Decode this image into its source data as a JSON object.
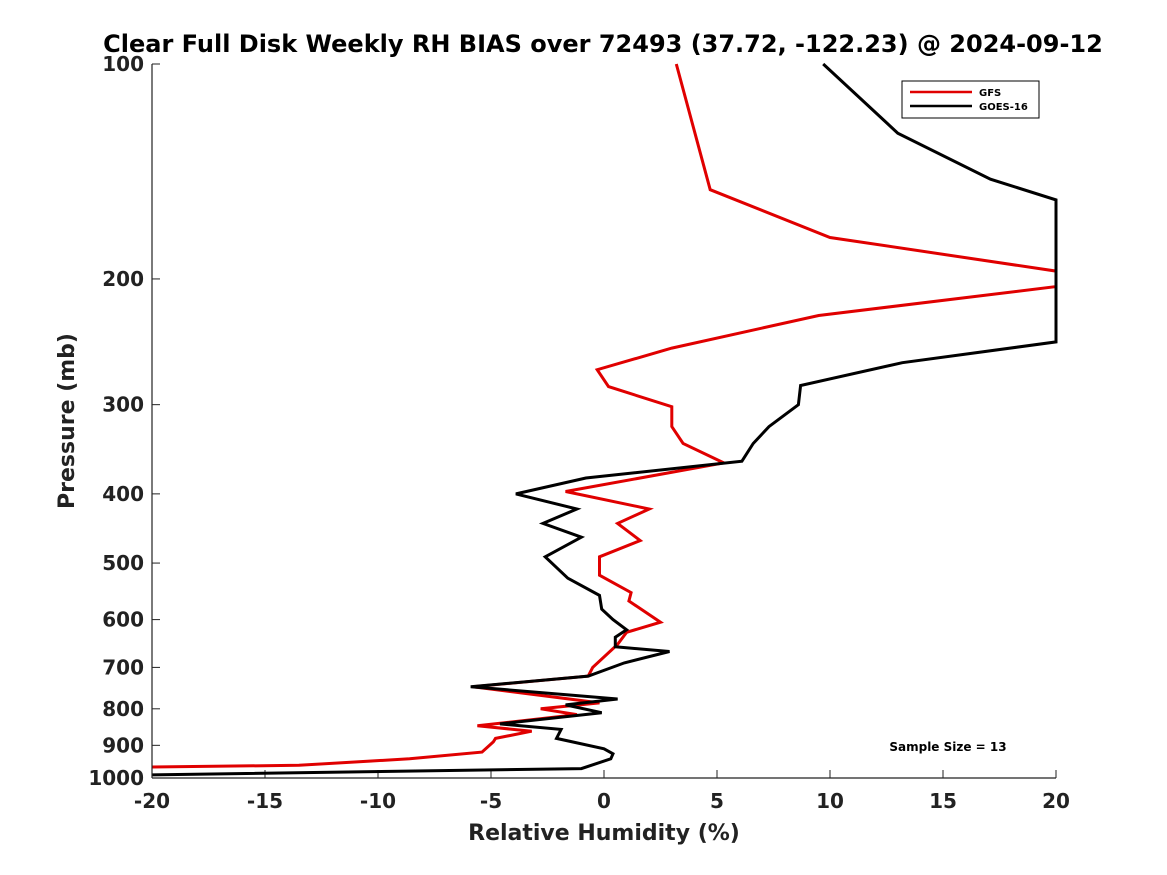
{
  "chart_data": {
    "type": "line",
    "title": "Clear Full Disk Weekly RH BIAS over 72493 (37.72, -122.23) @ 2024-09-12",
    "xlabel": "Relative Humidity (%)",
    "ylabel": "Pressure (mb)",
    "xlim": [
      -20,
      20
    ],
    "ylim": [
      100,
      1000
    ],
    "yscale": "log",
    "yreversed": true,
    "xticks": [
      -20,
      -15,
      -10,
      -5,
      0,
      5,
      10,
      15,
      20
    ],
    "xtick_labels": [
      "-20",
      "-15",
      "-10",
      "-5",
      "0",
      "5",
      "10",
      "15",
      "20"
    ],
    "yticks": [
      100,
      200,
      300,
      400,
      500,
      600,
      700,
      800,
      900,
      1000
    ],
    "ytick_labels": [
      "100",
      "200",
      "300",
      "400",
      "500",
      "600",
      "700",
      "800",
      "900",
      "1000"
    ],
    "grid": false,
    "legend_position": "top-right",
    "annotation": "Sample Size = 13",
    "series": [
      {
        "name": "GFS",
        "color": "#e00000",
        "points": [
          [
            3.2,
            100
          ],
          [
            4.7,
            150
          ],
          [
            10,
            175
          ],
          [
            20,
            195
          ],
          [
            20,
            205
          ],
          [
            9.5,
            225
          ],
          [
            3,
            250
          ],
          [
            -0.3,
            268
          ],
          [
            0.2,
            283
          ],
          [
            3,
            302
          ],
          [
            3,
            322
          ],
          [
            3.5,
            340
          ],
          [
            5.3,
            362
          ],
          [
            -1.7,
            397
          ],
          [
            2,
            420
          ],
          [
            0.6,
            440
          ],
          [
            1.6,
            465
          ],
          [
            -0.2,
            490
          ],
          [
            -0.2,
            520
          ],
          [
            1.2,
            550
          ],
          [
            1.1,
            565
          ],
          [
            2.5,
            605
          ],
          [
            1.0,
            625
          ],
          [
            0.6,
            650
          ],
          [
            -0.5,
            700
          ],
          [
            -0.7,
            720
          ],
          [
            -5.8,
            745
          ],
          [
            -0.2,
            785
          ],
          [
            -2.8,
            800
          ],
          [
            -1.2,
            815
          ],
          [
            -5.6,
            845
          ],
          [
            -3.2,
            860
          ],
          [
            -4.8,
            880
          ],
          [
            -4.9,
            890
          ],
          [
            -5.4,
            920
          ],
          [
            -8.6,
            940
          ],
          [
            -13.5,
            960
          ],
          [
            -20,
            965
          ]
        ]
      },
      {
        "name": "GOES-16",
        "color": "#000000",
        "points": [
          [
            9.7,
            100
          ],
          [
            13,
            125
          ],
          [
            17.1,
            145
          ],
          [
            20,
            155
          ],
          [
            20,
            245
          ],
          [
            13.2,
            262
          ],
          [
            8.7,
            282
          ],
          [
            8.6,
            300
          ],
          [
            7.3,
            322
          ],
          [
            6.6,
            340
          ],
          [
            6.1,
            360
          ],
          [
            -0.8,
            380
          ],
          [
            -3.9,
            400
          ],
          [
            -1.2,
            420
          ],
          [
            -2.7,
            440
          ],
          [
            -1.0,
            460
          ],
          [
            -2.6,
            490
          ],
          [
            -1.6,
            525
          ],
          [
            -0.2,
            555
          ],
          [
            -0.1,
            580
          ],
          [
            0.4,
            600
          ],
          [
            1.0,
            620
          ],
          [
            0.5,
            635
          ],
          [
            0.5,
            655
          ],
          [
            2.9,
            665
          ],
          [
            0.9,
            690
          ],
          [
            -0.7,
            720
          ],
          [
            -5.9,
            745
          ],
          [
            0.6,
            775
          ],
          [
            -1.7,
            790
          ],
          [
            -0.1,
            810
          ],
          [
            -4.6,
            840
          ],
          [
            -1.9,
            855
          ],
          [
            -2.1,
            880
          ],
          [
            0.0,
            910
          ],
          [
            0.4,
            925
          ],
          [
            0.3,
            940
          ],
          [
            -1.0,
            970
          ],
          [
            -20,
            990
          ]
        ]
      }
    ]
  }
}
